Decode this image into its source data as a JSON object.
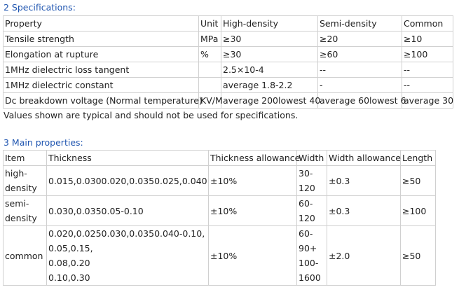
{
  "spec_section": {
    "title": "2 Specifications:",
    "table": {
      "header": [
        "Property",
        "Unit",
        "High-density",
        "Semi-density",
        "Common"
      ],
      "rows": [
        [
          "Tensile strength",
          "MPa",
          "≥30",
          "≥20",
          "≥10"
        ],
        [
          "Elongation at rupture",
          "%",
          "≥30",
          "≥60",
          "≥100"
        ],
        [
          "1MHz dielectric loss tangent",
          "",
          "2.5×10-4",
          "--",
          "--"
        ],
        [
          "1MHz dielectric constant",
          "",
          "average 1.8-2.2",
          "-",
          "--"
        ],
        [
          "Dc breakdown voltage (Normal temperature)",
          "KV/M",
          "average 200lowest 40",
          "average 60lowest 6",
          "average 30"
        ]
      ]
    },
    "note": "Values shown are typical and should not be used for specifications."
  },
  "main_section": {
    "title": "3 Main properties:",
    "table": {
      "header": [
        "Item",
        "Thickness",
        "Thickness allowance",
        "Width",
        "Width allowance",
        "Length"
      ],
      "rows": [
        [
          [
            "high-",
            "density"
          ],
          "0.015,0.0300.020,0.0350.025,0.040",
          "±10%",
          [
            "30-",
            "120"
          ],
          "±0.3",
          "≥50"
        ],
        [
          [
            "semi-",
            "density"
          ],
          "0.030,0.0350.05-0.10",
          "±10%",
          [
            "60-",
            "120"
          ],
          "±0.3",
          "≥100"
        ],
        [
          "common",
          [
            "0.020,0.0250.030,0.0350.040-0.10,",
            "0.05,0.15,",
            "0.08,0.20",
            "0.10,0.30"
          ],
          "±10%",
          [
            "60-",
            "90+",
            "100-",
            "1600"
          ],
          "±2.0",
          "≥50"
        ]
      ]
    }
  }
}
